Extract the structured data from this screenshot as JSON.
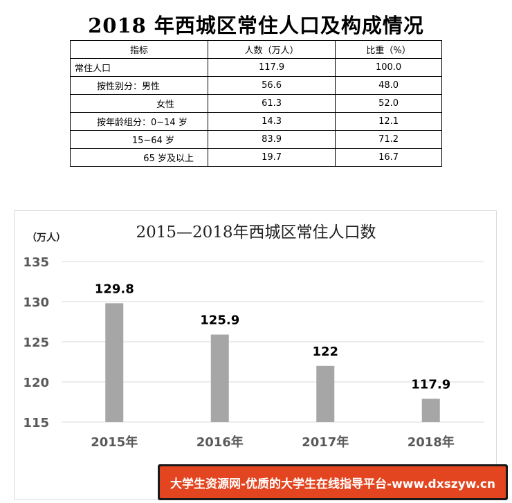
{
  "page_title": "2018 年西城区常住人口及构成情况",
  "table": {
    "headers": [
      "指标",
      "人数（万人）",
      "比重（%）"
    ],
    "rows": [
      {
        "label": "常住人口",
        "count": "117.9",
        "share": "100.0",
        "indent": 0
      },
      {
        "label": "按性别分：男性",
        "count": "56.6",
        "share": "48.0",
        "indent": 1
      },
      {
        "label": "女性",
        "count": "61.3",
        "share": "52.0",
        "indent": 2
      },
      {
        "label": "按年龄组分：0~14 岁",
        "count": "14.3",
        "share": "12.1",
        "indent": 1
      },
      {
        "label": "15~64 岁",
        "count": "83.9",
        "share": "71.2",
        "indent": 2
      },
      {
        "label": "65 岁及以上",
        "count": "19.7",
        "share": "16.7",
        "indent": 3
      }
    ]
  },
  "chart_data": {
    "type": "bar",
    "title": "2015—2018年西城区常住人口数",
    "unit_label": "（万人）",
    "categories": [
      "2015年",
      "2016年",
      "2017年",
      "2018年"
    ],
    "values": [
      129.8,
      125.9,
      122,
      117.9
    ],
    "data_labels": [
      "129.8",
      "125.9",
      "122",
      "117.9"
    ],
    "ylim": [
      115,
      135
    ],
    "yticks": [
      115,
      120,
      125,
      130,
      135
    ],
    "grid": true,
    "bar_color": "#a6a6a6"
  },
  "watermark": "大学生资源网-优质的大学生在线指导平台-www.dxszyw.cn"
}
